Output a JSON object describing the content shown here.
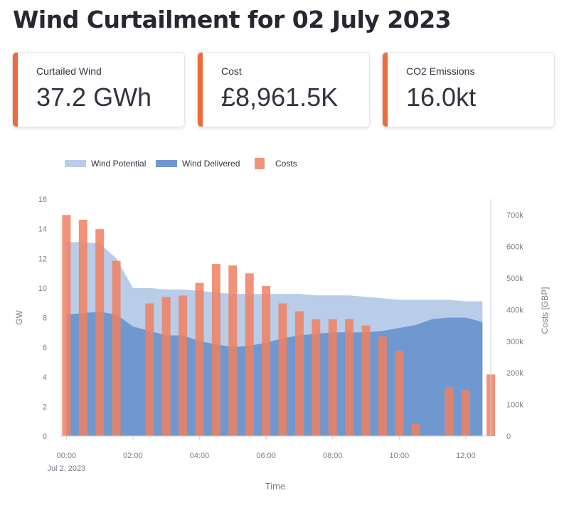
{
  "title": "Wind Curtailment for 02 July 2023",
  "metrics": [
    {
      "label": "Curtailed Wind",
      "value": "37.2 GWh"
    },
    {
      "label": "Cost",
      "value": "£8,961.5K"
    },
    {
      "label": "CO2 Emissions",
      "value": "16.0kt"
    }
  ],
  "colors": {
    "accent": "#ee6b3b",
    "potential": "#b9cde9",
    "delivered": "#6e98cf",
    "costs": "#f08062"
  },
  "chart_data": {
    "type": "bar+area",
    "legend": [
      "Wind Potential",
      "Wind Delivered",
      "Costs"
    ],
    "legend_position": "top-left",
    "xlabel": "Time",
    "ylabel_left": "GW",
    "ylabel_right": "Costs [GBP]",
    "x_ticks": [
      "00:00",
      "02:00",
      "04:00",
      "06:00",
      "08:00",
      "10:00",
      "12:00"
    ],
    "x_tick_hours": [
      0,
      2,
      4,
      6,
      8,
      10,
      12
    ],
    "x_sublabel": "Jul 2, 2023",
    "x_range_hours": [
      -0.2,
      12.75
    ],
    "y_left_range": [
      0,
      16
    ],
    "y_left_ticks": [
      "0",
      "2",
      "4",
      "6",
      "8",
      "10",
      "12",
      "14",
      "16"
    ],
    "y_right_range": [
      0,
      750000
    ],
    "y_right_ticks": [
      "0",
      "100k",
      "200k",
      "300k",
      "400k",
      "500k",
      "600k",
      "700k"
    ],
    "grid": false,
    "series": [
      {
        "name": "Wind Potential",
        "type": "area",
        "points": [
          [
            0,
            13.1
          ],
          [
            0.5,
            13.1
          ],
          [
            1,
            13.0
          ],
          [
            1.5,
            12.0
          ],
          [
            2,
            10.0
          ],
          [
            2.5,
            10.0
          ],
          [
            3,
            9.9
          ],
          [
            3.5,
            9.9
          ],
          [
            4,
            9.8
          ],
          [
            4.5,
            9.7
          ],
          [
            5,
            9.6
          ],
          [
            5.5,
            9.6
          ],
          [
            6,
            9.6
          ],
          [
            6.5,
            9.6
          ],
          [
            7,
            9.6
          ],
          [
            7.5,
            9.5
          ],
          [
            8,
            9.5
          ],
          [
            8.5,
            9.5
          ],
          [
            9,
            9.4
          ],
          [
            9.5,
            9.3
          ],
          [
            10,
            9.2
          ],
          [
            10.5,
            9.2
          ],
          [
            11,
            9.2
          ],
          [
            11.5,
            9.2
          ],
          [
            12,
            9.1
          ],
          [
            12.5,
            9.1
          ]
        ]
      },
      {
        "name": "Wind Delivered",
        "type": "area",
        "points": [
          [
            0,
            8.2
          ],
          [
            0.5,
            8.3
          ],
          [
            1,
            8.4
          ],
          [
            1.5,
            8.2
          ],
          [
            2,
            7.4
          ],
          [
            2.5,
            7.1
          ],
          [
            3,
            6.8
          ],
          [
            3.5,
            6.8
          ],
          [
            4,
            6.4
          ],
          [
            4.5,
            6.2
          ],
          [
            5,
            6.0
          ],
          [
            5.5,
            6.1
          ],
          [
            6,
            6.3
          ],
          [
            6.5,
            6.6
          ],
          [
            7,
            6.8
          ],
          [
            7.5,
            6.9
          ],
          [
            8,
            7.0
          ],
          [
            8.5,
            7.0
          ],
          [
            9,
            7.0
          ],
          [
            9.5,
            7.1
          ],
          [
            10,
            7.3
          ],
          [
            10.5,
            7.5
          ],
          [
            11,
            7.9
          ],
          [
            11.5,
            8.0
          ],
          [
            12,
            8.0
          ],
          [
            12.5,
            7.7
          ]
        ]
      },
      {
        "name": "Costs",
        "type": "bar",
        "points": [
          [
            0,
            700000
          ],
          [
            0.5,
            685000
          ],
          [
            1,
            655000
          ],
          [
            1.5,
            555000
          ],
          [
            2.5,
            420000
          ],
          [
            3,
            440000
          ],
          [
            3.5,
            445000
          ],
          [
            4,
            485000
          ],
          [
            4.5,
            545000
          ],
          [
            5,
            540000
          ],
          [
            5.5,
            515000
          ],
          [
            6,
            475000
          ],
          [
            6.5,
            420000
          ],
          [
            7,
            395000
          ],
          [
            7.5,
            370000
          ],
          [
            8,
            370000
          ],
          [
            8.5,
            370000
          ],
          [
            9,
            350000
          ],
          [
            9.5,
            315000
          ],
          [
            10,
            270000
          ],
          [
            10.5,
            38000
          ],
          [
            11.5,
            155000
          ],
          [
            12,
            145000
          ],
          [
            12.75,
            195000
          ]
        ]
      }
    ]
  }
}
